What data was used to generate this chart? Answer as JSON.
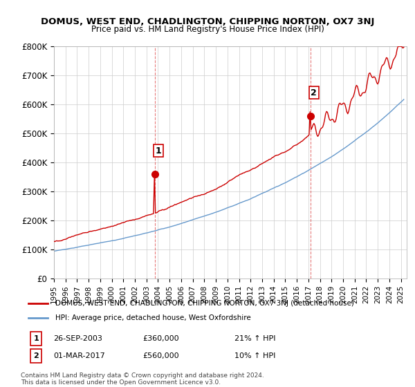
{
  "title": "DOMUS, WEST END, CHADLINGTON, CHIPPING NORTON, OX7 3NJ",
  "subtitle": "Price paid vs. HM Land Registry's House Price Index (HPI)",
  "ylabel": "",
  "ylim": [
    0,
    800000
  ],
  "yticks": [
    0,
    100000,
    200000,
    300000,
    400000,
    500000,
    600000,
    700000,
    800000
  ],
  "ytick_labels": [
    "£0",
    "£100K",
    "£200K",
    "£300K",
    "£400K",
    "£500K",
    "£600K",
    "£700K",
    "£800K"
  ],
  "xlim_start": 1995.0,
  "xlim_end": 2025.5,
  "red_color": "#cc0000",
  "blue_color": "#6699cc",
  "marker_color": "#cc0000",
  "sale1_x": 2003.73,
  "sale1_y": 360000,
  "sale1_label": "1",
  "sale2_x": 2017.17,
  "sale2_y": 560000,
  "sale2_label": "2",
  "legend_line1": "DOMUS, WEST END, CHADLINGTON, CHIPPING NORTON, OX7 3NJ (detached house)",
  "legend_line2": "HPI: Average price, detached house, West Oxfordshire",
  "annotation1_num": "1",
  "annotation1_date": "26-SEP-2003",
  "annotation1_price": "£360,000",
  "annotation1_hpi": "21% ↑ HPI",
  "annotation2_num": "2",
  "annotation2_date": "01-MAR-2017",
  "annotation2_price": "£560,000",
  "annotation2_hpi": "10% ↑ HPI",
  "footer": "Contains HM Land Registry data © Crown copyright and database right 2024.\nThis data is licensed under the Open Government Licence v3.0.",
  "background_color": "#ffffff",
  "grid_color": "#cccccc",
  "vline_color": "#dd4444"
}
